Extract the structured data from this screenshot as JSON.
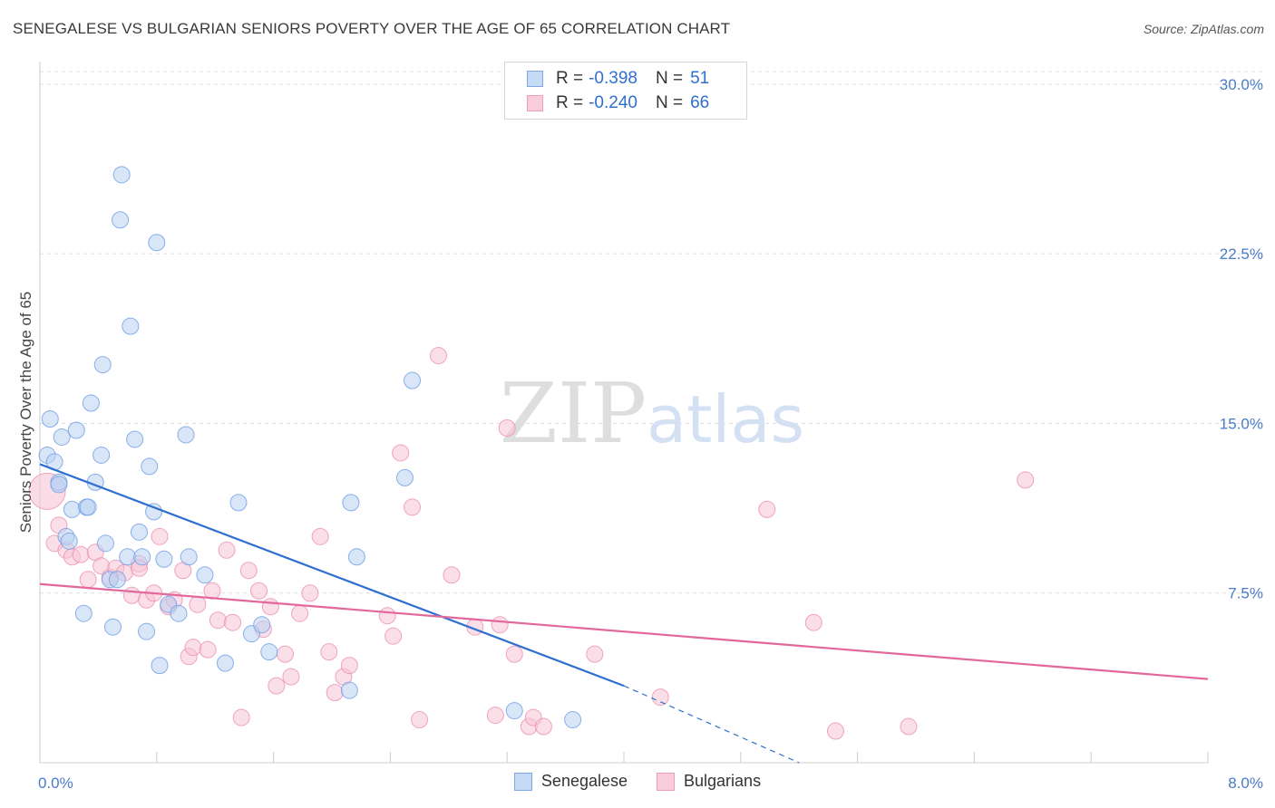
{
  "header": {
    "title": "SENEGALESE VS BULGARIAN SENIORS POVERTY OVER THE AGE OF 65 CORRELATION CHART",
    "source": "Source: ZipAtlas.com"
  },
  "watermark": {
    "zip": "ZIP",
    "atlas": "atlas"
  },
  "legend": {
    "rows": [
      {
        "r_label": "R =",
        "r_value": "-0.398",
        "n_label": "N =",
        "n_value": "51",
        "color": "#a9c7ef"
      },
      {
        "r_label": "R =",
        "r_value": "-0.240",
        "n_label": "N =",
        "n_value": "66",
        "color": "#f5b8cb"
      }
    ]
  },
  "bottom_legend": [
    {
      "label": "Senegalese",
      "color": "#a9c7ef"
    },
    {
      "label": "Bulgarians",
      "color": "#f5b8cb"
    }
  ],
  "chart_data": {
    "type": "scatter",
    "title": "SENEGALESE VS BULGARIAN SENIORS POVERTY OVER THE AGE OF 65 CORRELATION CHART",
    "xlabel": "",
    "ylabel": "Seniors Poverty Over the Age of 65",
    "xlim": [
      0,
      8.0
    ],
    "ylim": [
      0,
      31
    ],
    "x_tick_labels": [
      "0.0%",
      "8.0%"
    ],
    "y_ticks": [
      7.5,
      15.0,
      22.5,
      30.0
    ],
    "y_tick_labels": [
      "7.5%",
      "15.0%",
      "22.5%",
      "30.0%"
    ],
    "grid": "horizontal dashed",
    "series": [
      {
        "name": "Senegalese",
        "color": "#6d9ee6",
        "fill": "#b9d2f3",
        "r": -0.398,
        "n": 51,
        "trend": {
          "x": [
            0.0,
            4.0
          ],
          "y": [
            13.2,
            3.4
          ],
          "dashed_to": [
            5.2,
            0.0
          ]
        },
        "points": [
          [
            0.05,
            13.6
          ],
          [
            0.07,
            15.2
          ],
          [
            0.1,
            13.3
          ],
          [
            0.13,
            12.4
          ],
          [
            0.15,
            14.4
          ],
          [
            0.18,
            10.0
          ],
          [
            0.2,
            9.8
          ],
          [
            0.22,
            11.2
          ],
          [
            0.25,
            14.7
          ],
          [
            0.3,
            6.6
          ],
          [
            0.32,
            11.3
          ],
          [
            0.33,
            11.3
          ],
          [
            0.35,
            15.9
          ],
          [
            0.38,
            12.4
          ],
          [
            0.42,
            13.6
          ],
          [
            0.43,
            17.6
          ],
          [
            0.45,
            9.7
          ],
          [
            0.48,
            8.1
          ],
          [
            0.5,
            6.0
          ],
          [
            0.53,
            8.1
          ],
          [
            0.55,
            24.0
          ],
          [
            0.56,
            26.0
          ],
          [
            0.6,
            9.1
          ],
          [
            0.62,
            19.3
          ],
          [
            0.65,
            14.3
          ],
          [
            0.68,
            10.2
          ],
          [
            0.7,
            9.1
          ],
          [
            0.73,
            5.8
          ],
          [
            0.75,
            13.1
          ],
          [
            0.78,
            11.1
          ],
          [
            0.8,
            23.0
          ],
          [
            0.82,
            4.3
          ],
          [
            0.85,
            9.0
          ],
          [
            0.88,
            7.0
          ],
          [
            0.95,
            6.6
          ],
          [
            1.0,
            14.5
          ],
          [
            1.02,
            9.1
          ],
          [
            1.13,
            8.3
          ],
          [
            1.27,
            4.4
          ],
          [
            1.36,
            11.5
          ],
          [
            1.45,
            5.7
          ],
          [
            1.52,
            6.1
          ],
          [
            1.57,
            4.9
          ],
          [
            2.12,
            3.2
          ],
          [
            2.13,
            11.5
          ],
          [
            2.17,
            9.1
          ],
          [
            2.5,
            12.6
          ],
          [
            2.55,
            16.9
          ],
          [
            3.25,
            2.3
          ],
          [
            3.65,
            1.9
          ],
          [
            0.13,
            12.3
          ]
        ]
      },
      {
        "name": "Bulgarians",
        "color": "#ec8fb0",
        "fill": "#f7c4d5",
        "r": -0.24,
        "n": 66,
        "trend": {
          "x": [
            0.0,
            8.0
          ],
          "y": [
            7.9,
            3.7
          ]
        },
        "points": [
          [
            0.05,
            12.0
          ],
          [
            0.1,
            9.7
          ],
          [
            0.13,
            10.5
          ],
          [
            0.18,
            9.4
          ],
          [
            0.22,
            9.1
          ],
          [
            0.28,
            9.2
          ],
          [
            0.33,
            8.1
          ],
          [
            0.38,
            9.3
          ],
          [
            0.42,
            8.7
          ],
          [
            0.48,
            8.2
          ],
          [
            0.52,
            8.6
          ],
          [
            0.58,
            8.4
          ],
          [
            0.63,
            7.4
          ],
          [
            0.68,
            8.8
          ],
          [
            0.73,
            7.2
          ],
          [
            0.78,
            7.5
          ],
          [
            0.82,
            10.0
          ],
          [
            0.88,
            6.9
          ],
          [
            0.92,
            7.2
          ],
          [
            0.98,
            8.5
          ],
          [
            1.02,
            4.7
          ],
          [
            1.05,
            5.1
          ],
          [
            1.08,
            7.0
          ],
          [
            1.15,
            5.0
          ],
          [
            1.18,
            7.6
          ],
          [
            1.22,
            6.3
          ],
          [
            1.28,
            9.4
          ],
          [
            1.32,
            6.2
          ],
          [
            1.38,
            2.0
          ],
          [
            1.43,
            8.5
          ],
          [
            1.5,
            7.6
          ],
          [
            1.53,
            5.9
          ],
          [
            1.58,
            6.9
          ],
          [
            1.62,
            3.4
          ],
          [
            1.68,
            4.8
          ],
          [
            1.72,
            3.8
          ],
          [
            1.78,
            6.6
          ],
          [
            1.85,
            7.5
          ],
          [
            1.92,
            10.0
          ],
          [
            1.98,
            4.9
          ],
          [
            2.02,
            3.1
          ],
          [
            2.08,
            3.8
          ],
          [
            2.12,
            4.3
          ],
          [
            2.38,
            6.5
          ],
          [
            2.42,
            5.6
          ],
          [
            2.47,
            13.7
          ],
          [
            2.55,
            11.3
          ],
          [
            2.6,
            1.9
          ],
          [
            2.73,
            18.0
          ],
          [
            2.82,
            8.3
          ],
          [
            2.98,
            6.0
          ],
          [
            3.12,
            2.1
          ],
          [
            3.15,
            6.1
          ],
          [
            3.2,
            14.8
          ],
          [
            3.25,
            4.8
          ],
          [
            3.35,
            1.6
          ],
          [
            3.38,
            2.0
          ],
          [
            3.45,
            1.6
          ],
          [
            3.8,
            4.8
          ],
          [
            4.25,
            2.9
          ],
          [
            4.98,
            11.2
          ],
          [
            5.3,
            6.2
          ],
          [
            5.45,
            1.4
          ],
          [
            5.95,
            1.6
          ],
          [
            6.75,
            12.5
          ],
          [
            0.68,
            8.6
          ]
        ]
      }
    ]
  }
}
